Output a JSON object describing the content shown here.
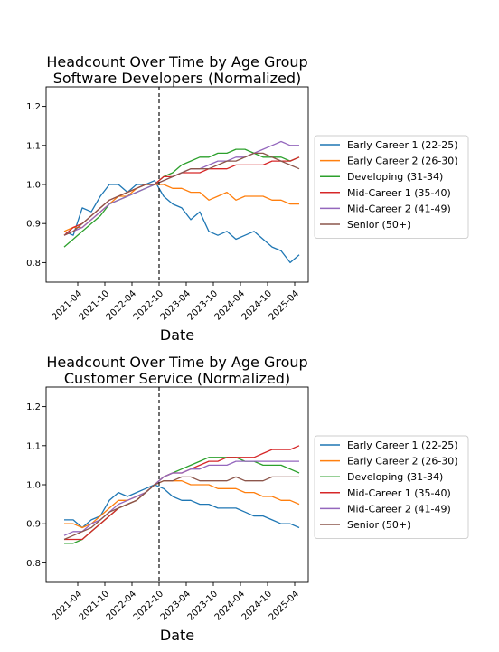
{
  "chart_data": [
    {
      "type": "line",
      "title": [
        "Headcount Over Time by Age Group",
        "Software Developers (Normalized)"
      ],
      "xlabel": "Date",
      "ylabel": "",
      "xlim": [
        "2020-09",
        "2025-07"
      ],
      "ylim": [
        0.75,
        1.25
      ],
      "yticks": [
        0.8,
        0.9,
        1.0,
        1.1,
        1.2
      ],
      "yticklabels": [
        "0.8",
        "0.9",
        "1.0",
        "1.1",
        "1.2"
      ],
      "xticks": [
        "2021-04",
        "2021-10",
        "2022-04",
        "2022-10",
        "2023-04",
        "2023-10",
        "2024-04",
        "2024-10",
        "2025-04"
      ],
      "reference_line": "2022-10",
      "grid": false,
      "legend_placement": "right",
      "series": [
        {
          "name": "Early Career 1 (22-25)",
          "color": "#1f77b4",
          "x": [
            "2021-01",
            "2021-03",
            "2021-05",
            "2021-07",
            "2021-09",
            "2021-11",
            "2022-01",
            "2022-03",
            "2022-05",
            "2022-07",
            "2022-09",
            "2022-11",
            "2023-01",
            "2023-03",
            "2023-05",
            "2023-07",
            "2023-09",
            "2023-11",
            "2024-01",
            "2024-03",
            "2024-05",
            "2024-07",
            "2024-09",
            "2024-11",
            "2025-01",
            "2025-03",
            "2025-05"
          ],
          "y": [
            0.88,
            0.87,
            0.94,
            0.93,
            0.97,
            1.0,
            1.0,
            0.98,
            1.0,
            1.0,
            1.01,
            0.97,
            0.95,
            0.94,
            0.91,
            0.93,
            0.88,
            0.87,
            0.88,
            0.86,
            0.87,
            0.88,
            0.86,
            0.84,
            0.83,
            0.8,
            0.82
          ]
        },
        {
          "name": "Early Career 2 (26-30)",
          "color": "#ff7f0e",
          "x": [
            "2021-01",
            "2021-03",
            "2021-05",
            "2021-07",
            "2021-09",
            "2021-11",
            "2022-01",
            "2022-03",
            "2022-05",
            "2022-07",
            "2022-09",
            "2022-11",
            "2023-01",
            "2023-03",
            "2023-05",
            "2023-07",
            "2023-09",
            "2023-11",
            "2024-01",
            "2024-03",
            "2024-05",
            "2024-07",
            "2024-09",
            "2024-11",
            "2025-01",
            "2025-03",
            "2025-05"
          ],
          "y": [
            0.88,
            0.89,
            0.89,
            0.91,
            0.93,
            0.95,
            0.97,
            0.97,
            0.99,
            1.0,
            1.0,
            1.0,
            0.99,
            0.99,
            0.98,
            0.98,
            0.96,
            0.97,
            0.98,
            0.96,
            0.97,
            0.97,
            0.97,
            0.96,
            0.96,
            0.95,
            0.95
          ]
        },
        {
          "name": "Developing (31-34)",
          "color": "#2ca02c",
          "x": [
            "2021-01",
            "2021-03",
            "2021-05",
            "2021-07",
            "2021-09",
            "2021-11",
            "2022-01",
            "2022-03",
            "2022-05",
            "2022-07",
            "2022-09",
            "2022-11",
            "2023-01",
            "2023-03",
            "2023-05",
            "2023-07",
            "2023-09",
            "2023-11",
            "2024-01",
            "2024-03",
            "2024-05",
            "2024-07",
            "2024-09",
            "2024-11",
            "2025-01",
            "2025-03",
            "2025-05"
          ],
          "y": [
            0.84,
            0.86,
            0.88,
            0.9,
            0.92,
            0.95,
            0.96,
            0.97,
            0.98,
            0.99,
            1.0,
            1.02,
            1.03,
            1.05,
            1.06,
            1.07,
            1.07,
            1.08,
            1.08,
            1.09,
            1.09,
            1.08,
            1.07,
            1.07,
            1.07,
            1.06,
            1.07
          ]
        },
        {
          "name": "Mid-Career 1 (35-40)",
          "color": "#d62728",
          "x": [
            "2021-01",
            "2021-03",
            "2021-05",
            "2021-07",
            "2021-09",
            "2021-11",
            "2022-01",
            "2022-03",
            "2022-05",
            "2022-07",
            "2022-09",
            "2022-11",
            "2023-01",
            "2023-03",
            "2023-05",
            "2023-07",
            "2023-09",
            "2023-11",
            "2024-01",
            "2024-03",
            "2024-05",
            "2024-07",
            "2024-09",
            "2024-11",
            "2025-01",
            "2025-03",
            "2025-05"
          ],
          "y": [
            0.87,
            0.89,
            0.9,
            0.92,
            0.94,
            0.96,
            0.97,
            0.98,
            0.99,
            1.0,
            1.0,
            1.02,
            1.02,
            1.03,
            1.03,
            1.03,
            1.04,
            1.04,
            1.04,
            1.05,
            1.05,
            1.05,
            1.05,
            1.06,
            1.06,
            1.06,
            1.07
          ]
        },
        {
          "name": "Mid-Career 2 (41-49)",
          "color": "#9467bd",
          "x": [
            "2021-01",
            "2021-03",
            "2021-05",
            "2021-07",
            "2021-09",
            "2021-11",
            "2022-01",
            "2022-03",
            "2022-05",
            "2022-07",
            "2022-09",
            "2022-11",
            "2023-01",
            "2023-03",
            "2023-05",
            "2023-07",
            "2023-09",
            "2023-11",
            "2024-01",
            "2024-03",
            "2024-05",
            "2024-07",
            "2024-09",
            "2024-11",
            "2025-01",
            "2025-03",
            "2025-05"
          ],
          "y": [
            0.87,
            0.88,
            0.89,
            0.91,
            0.93,
            0.95,
            0.96,
            0.97,
            0.98,
            0.99,
            1.0,
            1.01,
            1.02,
            1.03,
            1.04,
            1.04,
            1.05,
            1.06,
            1.06,
            1.07,
            1.07,
            1.08,
            1.09,
            1.1,
            1.11,
            1.1,
            1.1
          ]
        },
        {
          "name": "Senior (50+)",
          "color": "#8c564b",
          "x": [
            "2021-01",
            "2021-03",
            "2021-05",
            "2021-07",
            "2021-09",
            "2021-11",
            "2022-01",
            "2022-03",
            "2022-05",
            "2022-07",
            "2022-09",
            "2022-11",
            "2023-01",
            "2023-03",
            "2023-05",
            "2023-07",
            "2023-09",
            "2023-11",
            "2024-01",
            "2024-03",
            "2024-05",
            "2024-07",
            "2024-09",
            "2024-11",
            "2025-01",
            "2025-03",
            "2025-05"
          ],
          "y": [
            0.87,
            0.88,
            0.9,
            0.92,
            0.94,
            0.96,
            0.97,
            0.98,
            0.99,
            1.0,
            1.0,
            1.01,
            1.02,
            1.03,
            1.04,
            1.04,
            1.04,
            1.05,
            1.06,
            1.06,
            1.07,
            1.08,
            1.08,
            1.07,
            1.06,
            1.05,
            1.04
          ]
        }
      ]
    },
    {
      "type": "line",
      "title": [
        "Headcount Over Time by Age Group",
        "Customer Service (Normalized)"
      ],
      "xlabel": "Date",
      "ylabel": "",
      "xlim": [
        "2020-09",
        "2025-07"
      ],
      "ylim": [
        0.75,
        1.25
      ],
      "yticks": [
        0.8,
        0.9,
        1.0,
        1.1,
        1.2
      ],
      "yticklabels": [
        "0.8",
        "0.9",
        "1.0",
        "1.1",
        "1.2"
      ],
      "xticks": [
        "2021-04",
        "2021-10",
        "2022-04",
        "2022-10",
        "2023-04",
        "2023-10",
        "2024-04",
        "2024-10",
        "2025-04"
      ],
      "reference_line": "2022-10",
      "grid": false,
      "legend_placement": "right",
      "series": [
        {
          "name": "Early Career 1 (22-25)",
          "color": "#1f77b4",
          "x": [
            "2021-01",
            "2021-03",
            "2021-05",
            "2021-07",
            "2021-09",
            "2021-11",
            "2022-01",
            "2022-03",
            "2022-05",
            "2022-07",
            "2022-09",
            "2022-11",
            "2023-01",
            "2023-03",
            "2023-05",
            "2023-07",
            "2023-09",
            "2023-11",
            "2024-01",
            "2024-03",
            "2024-05",
            "2024-07",
            "2024-09",
            "2024-11",
            "2025-01",
            "2025-03",
            "2025-05"
          ],
          "y": [
            0.91,
            0.91,
            0.89,
            0.91,
            0.92,
            0.96,
            0.98,
            0.97,
            0.98,
            0.99,
            1.0,
            0.99,
            0.97,
            0.96,
            0.96,
            0.95,
            0.95,
            0.94,
            0.94,
            0.94,
            0.93,
            0.92,
            0.92,
            0.91,
            0.9,
            0.9,
            0.89
          ]
        },
        {
          "name": "Early Career 2 (26-30)",
          "color": "#ff7f0e",
          "x": [
            "2021-01",
            "2021-03",
            "2021-05",
            "2021-07",
            "2021-09",
            "2021-11",
            "2022-01",
            "2022-03",
            "2022-05",
            "2022-07",
            "2022-09",
            "2022-11",
            "2023-01",
            "2023-03",
            "2023-05",
            "2023-07",
            "2023-09",
            "2023-11",
            "2024-01",
            "2024-03",
            "2024-05",
            "2024-07",
            "2024-09",
            "2024-11",
            "2025-01",
            "2025-03",
            "2025-05"
          ],
          "y": [
            0.9,
            0.9,
            0.89,
            0.9,
            0.92,
            0.94,
            0.96,
            0.96,
            0.97,
            0.98,
            1.0,
            1.01,
            1.01,
            1.01,
            1.0,
            1.0,
            1.0,
            0.99,
            0.99,
            0.99,
            0.98,
            0.98,
            0.97,
            0.97,
            0.96,
            0.96,
            0.95
          ]
        },
        {
          "name": "Developing (31-34)",
          "color": "#2ca02c",
          "x": [
            "2021-01",
            "2021-03",
            "2021-05",
            "2021-07",
            "2021-09",
            "2021-11",
            "2022-01",
            "2022-03",
            "2022-05",
            "2022-07",
            "2022-09",
            "2022-11",
            "2023-01",
            "2023-03",
            "2023-05",
            "2023-07",
            "2023-09",
            "2023-11",
            "2024-01",
            "2024-03",
            "2024-05",
            "2024-07",
            "2024-09",
            "2024-11",
            "2025-01",
            "2025-03",
            "2025-05"
          ],
          "y": [
            0.85,
            0.85,
            0.86,
            0.88,
            0.9,
            0.92,
            0.94,
            0.95,
            0.96,
            0.98,
            1.0,
            1.02,
            1.03,
            1.04,
            1.05,
            1.06,
            1.07,
            1.07,
            1.07,
            1.07,
            1.06,
            1.06,
            1.05,
            1.05,
            1.05,
            1.04,
            1.03
          ]
        },
        {
          "name": "Mid-Career 1 (35-40)",
          "color": "#d62728",
          "x": [
            "2021-01",
            "2021-03",
            "2021-05",
            "2021-07",
            "2021-09",
            "2021-11",
            "2022-01",
            "2022-03",
            "2022-05",
            "2022-07",
            "2022-09",
            "2022-11",
            "2023-01",
            "2023-03",
            "2023-05",
            "2023-07",
            "2023-09",
            "2023-11",
            "2024-01",
            "2024-03",
            "2024-05",
            "2024-07",
            "2024-09",
            "2024-11",
            "2025-01",
            "2025-03",
            "2025-05"
          ],
          "y": [
            0.86,
            0.86,
            0.86,
            0.88,
            0.9,
            0.92,
            0.94,
            0.95,
            0.96,
            0.98,
            1.0,
            1.02,
            1.03,
            1.03,
            1.04,
            1.05,
            1.06,
            1.06,
            1.07,
            1.07,
            1.07,
            1.07,
            1.08,
            1.09,
            1.09,
            1.09,
            1.1
          ]
        },
        {
          "name": "Mid-Career 2 (41-49)",
          "color": "#9467bd",
          "x": [
            "2021-01",
            "2021-03",
            "2021-05",
            "2021-07",
            "2021-09",
            "2021-11",
            "2022-01",
            "2022-03",
            "2022-05",
            "2022-07",
            "2022-09",
            "2022-11",
            "2023-01",
            "2023-03",
            "2023-05",
            "2023-07",
            "2023-09",
            "2023-11",
            "2024-01",
            "2024-03",
            "2024-05",
            "2024-07",
            "2024-09",
            "2024-11",
            "2025-01",
            "2025-03",
            "2025-05"
          ],
          "y": [
            0.87,
            0.88,
            0.88,
            0.9,
            0.91,
            0.93,
            0.95,
            0.96,
            0.97,
            0.98,
            1.0,
            1.02,
            1.03,
            1.03,
            1.04,
            1.04,
            1.05,
            1.05,
            1.05,
            1.06,
            1.06,
            1.06,
            1.06,
            1.06,
            1.06,
            1.06,
            1.06
          ]
        },
        {
          "name": "Senior (50+)",
          "color": "#8c564b",
          "x": [
            "2021-01",
            "2021-03",
            "2021-05",
            "2021-07",
            "2021-09",
            "2021-11",
            "2022-01",
            "2022-03",
            "2022-05",
            "2022-07",
            "2022-09",
            "2022-11",
            "2023-01",
            "2023-03",
            "2023-05",
            "2023-07",
            "2023-09",
            "2023-11",
            "2024-01",
            "2024-03",
            "2024-05",
            "2024-07",
            "2024-09",
            "2024-11",
            "2025-01",
            "2025-03",
            "2025-05"
          ],
          "y": [
            0.86,
            0.87,
            0.88,
            0.89,
            0.91,
            0.93,
            0.94,
            0.95,
            0.96,
            0.98,
            1.0,
            1.01,
            1.01,
            1.02,
            1.02,
            1.01,
            1.01,
            1.01,
            1.01,
            1.02,
            1.01,
            1.01,
            1.01,
            1.02,
            1.02,
            1.02,
            1.02
          ]
        }
      ]
    }
  ]
}
